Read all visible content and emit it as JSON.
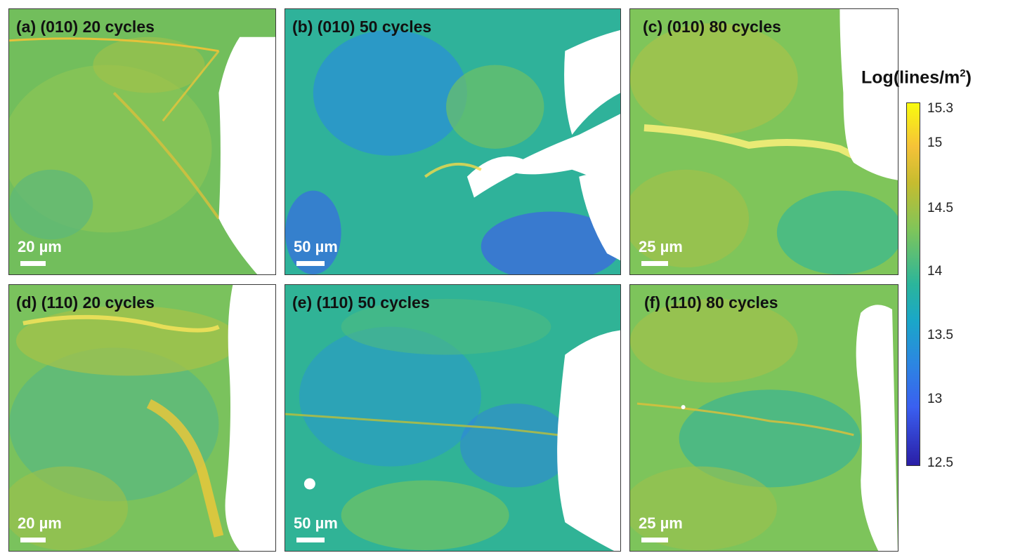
{
  "panels": [
    {
      "id": "a",
      "label": "(a) (010) 20 cycles",
      "scale_label": "20 µm"
    },
    {
      "id": "b",
      "label": "(b) (010) 50 cycles",
      "scale_label": "50 µm"
    },
    {
      "id": "c",
      "label": "(c) (010) 80 cycles",
      "scale_label": "25 µm"
    },
    {
      "id": "d",
      "label": "(d) (110) 20 cycles",
      "scale_label": "20 µm"
    },
    {
      "id": "e",
      "label": "(e) (110) 50 cycles",
      "scale_label": "50 µm"
    },
    {
      "id": "f",
      "label": "(f) (110) 80 cycles",
      "scale_label": "25 µm"
    }
  ],
  "colorbar": {
    "title_main": "Log(lines/m",
    "title_sup": "2",
    "title_end": ")",
    "ticks": [
      "15.3",
      "15",
      "14.5",
      "14",
      "13.5",
      "13",
      "12.5"
    ],
    "colors": [
      "#f9fb0e",
      "#f5c238",
      "#7fc55a",
      "#2bb59b",
      "#1aa7c8",
      "#3a5ff0",
      "#2a1ea6"
    ]
  }
}
